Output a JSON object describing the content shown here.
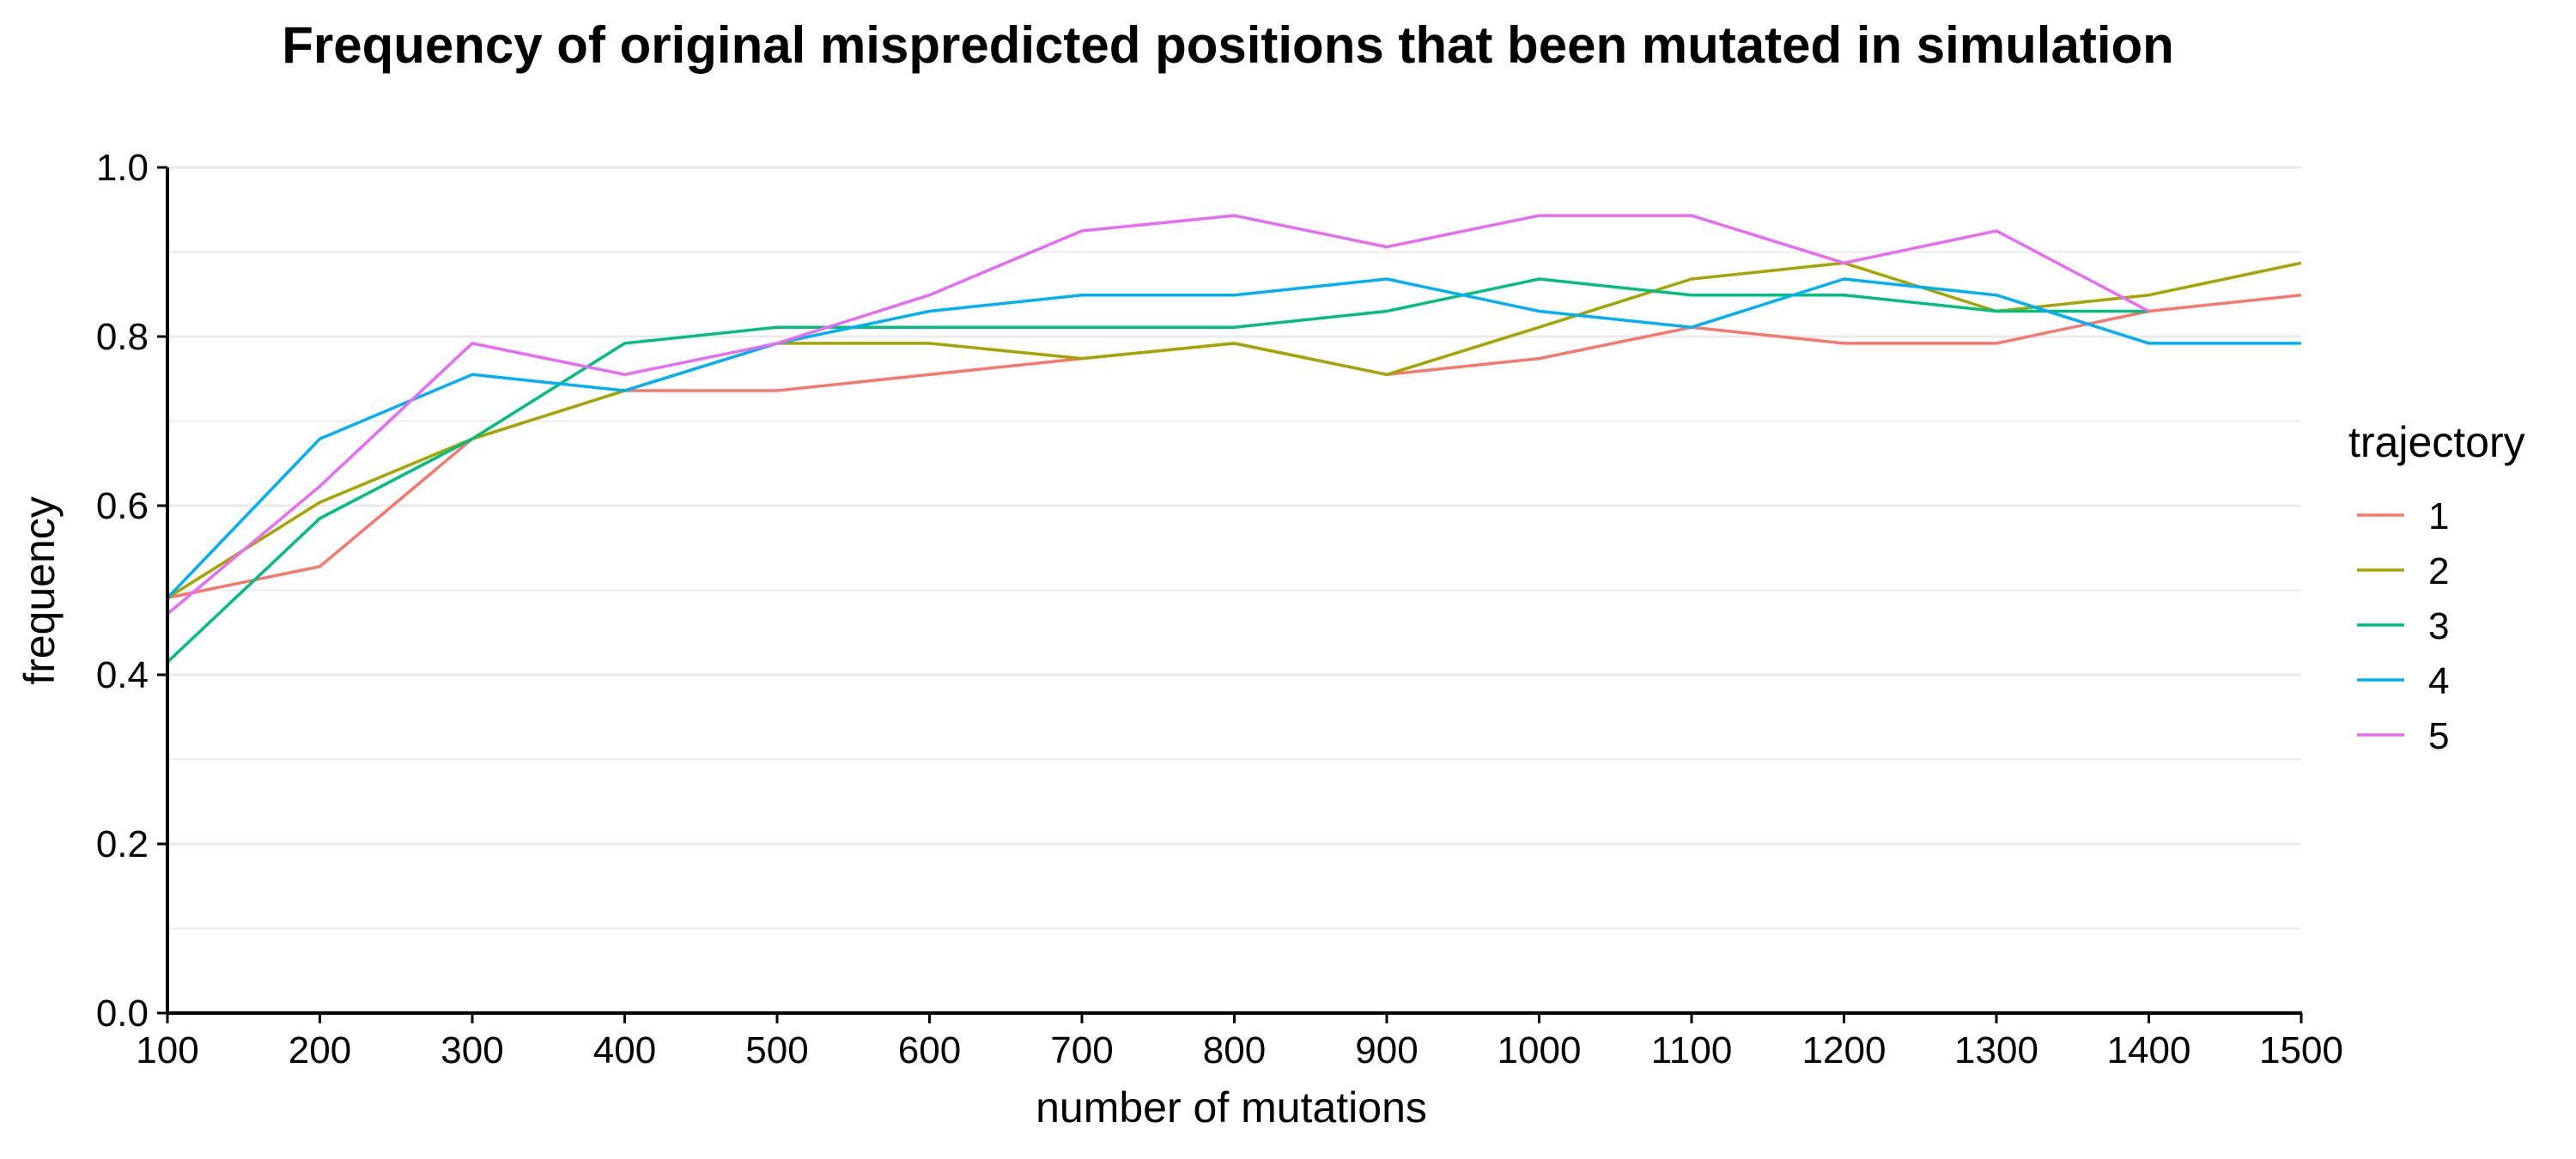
{
  "chart_data": {
    "type": "line",
    "title": "Frequency of original mispredicted positions that been mutated in simulation",
    "xlabel": "number of mutations",
    "ylabel": "frequency",
    "x": [
      100,
      200,
      300,
      400,
      500,
      600,
      700,
      800,
      900,
      1000,
      1100,
      1200,
      1300,
      1400,
      1500
    ],
    "xlim": [
      100,
      1500
    ],
    "ylim": [
      0,
      1
    ],
    "x_ticks": [
      "100",
      "200",
      "300",
      "400",
      "500",
      "600",
      "700",
      "800",
      "900",
      "1000",
      "1100",
      "1200",
      "1300",
      "1400",
      "1500"
    ],
    "y_ticks": [
      "0.0",
      "0.2",
      "0.4",
      "0.6",
      "0.8",
      "1.0"
    ],
    "grid": "horizontal",
    "legend_title": "trajectory",
    "legend_position": "right",
    "series": [
      {
        "name": "1",
        "color": "#F8766D",
        "values": [
          0.491,
          0.528,
          0.679,
          0.736,
          0.736,
          0.755,
          0.774,
          0.792,
          0.755,
          0.774,
          0.811,
          0.792,
          0.792,
          0.83,
          0.849
        ]
      },
      {
        "name": "2",
        "color": "#A3A500",
        "values": [
          0.491,
          0.604,
          0.679,
          0.736,
          0.792,
          0.792,
          0.774,
          0.792,
          0.755,
          0.811,
          0.868,
          0.887,
          0.83,
          0.849,
          0.887
        ]
      },
      {
        "name": "3",
        "color": "#00BF7D",
        "values": [
          0.415,
          0.585,
          0.679,
          0.792,
          0.811,
          0.811,
          0.811,
          0.811,
          0.83,
          0.868,
          0.849,
          0.849,
          0.83,
          0.83,
          null
        ]
      },
      {
        "name": "4",
        "color": "#00B0F6",
        "values": [
          0.491,
          0.679,
          0.755,
          0.736,
          0.792,
          0.83,
          0.849,
          0.849,
          0.868,
          0.83,
          0.811,
          0.868,
          0.849,
          0.792,
          0.792
        ]
      },
      {
        "name": "5",
        "color": "#E76BF3",
        "values": [
          0.472,
          0.623,
          0.792,
          0.755,
          0.792,
          0.849,
          0.925,
          0.943,
          0.906,
          0.943,
          0.943,
          0.887,
          0.925,
          0.83,
          null
        ]
      }
    ]
  }
}
